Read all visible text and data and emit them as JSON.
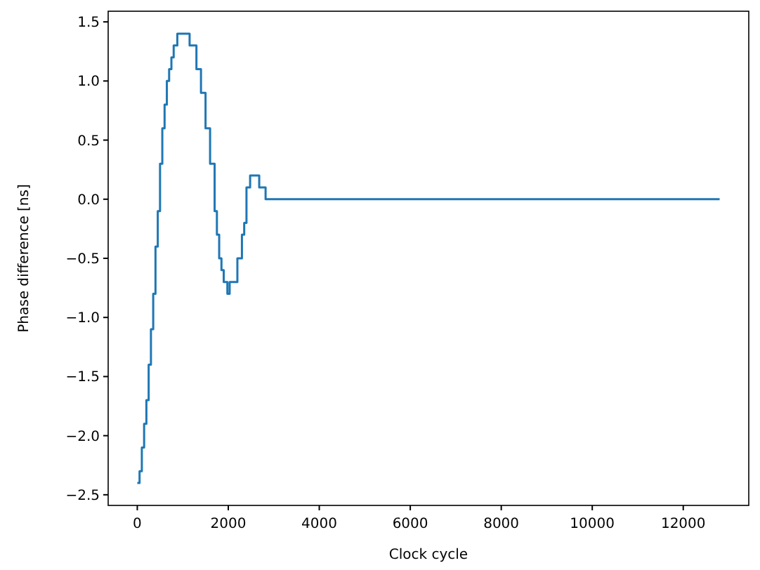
{
  "chart_data": {
    "type": "step",
    "xlabel": "Clock cycle",
    "ylabel": "Phase difference [ns]",
    "x": [
      0,
      50,
      100,
      150,
      200,
      250,
      300,
      350,
      400,
      450,
      500,
      550,
      600,
      650,
      700,
      750,
      800,
      880,
      1150,
      1300,
      1400,
      1500,
      1600,
      1700,
      1750,
      1800,
      1850,
      1900,
      1980,
      2030,
      2200,
      2300,
      2350,
      2400,
      2480,
      2680,
      2820,
      12800
    ],
    "series": [
      {
        "color": "#1f77b4",
        "values": [
          -2.4,
          -2.3,
          -2.1,
          -1.9,
          -1.7,
          -1.4,
          -1.1,
          -0.8,
          -0.4,
          -0.1,
          0.3,
          0.6,
          0.8,
          1.0,
          1.1,
          1.2,
          1.3,
          1.4,
          1.3,
          1.1,
          0.9,
          0.6,
          0.3,
          -0.1,
          -0.3,
          -0.5,
          -0.6,
          -0.7,
          -0.8,
          -0.7,
          -0.5,
          -0.3,
          -0.2,
          0.1,
          0.2,
          0.1,
          0.0,
          0.0
        ]
      }
    ],
    "xlim": [
      -640,
      13440
    ],
    "ylim": [
      -2.59,
      1.59
    ],
    "xticks": [
      0,
      2000,
      4000,
      6000,
      8000,
      10000,
      12000
    ],
    "yticks": [
      {
        "value": -2.5,
        "label": "−2.5"
      },
      {
        "value": -2,
        "label": "−2.0"
      },
      {
        "value": -1.5,
        "label": "−1.5"
      },
      {
        "value": -1,
        "label": "−1.0"
      },
      {
        "value": -0.5,
        "label": "−0.5"
      },
      {
        "value": 0,
        "label": "0.0"
      },
      {
        "value": 0.5,
        "label": "0.5"
      },
      {
        "value": 1,
        "label": "1.0"
      },
      {
        "value": 1.5,
        "label": "1.5"
      }
    ],
    "grid": false
  }
}
